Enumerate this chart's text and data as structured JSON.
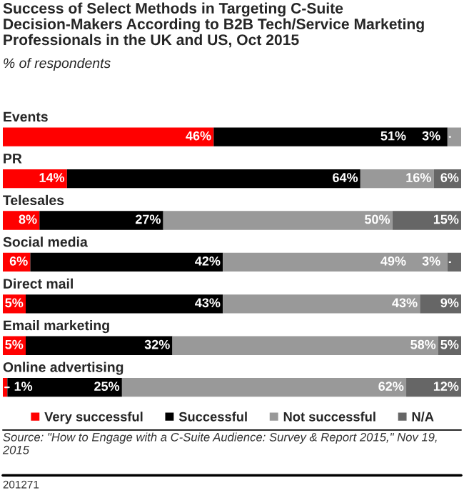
{
  "chart_data": {
    "type": "bar",
    "orientation": "horizontal",
    "stacked": true,
    "title": "Success of Select Methods in Targeting C-Suite Decision-Makers According to B2B Tech/Service Marketing Professionals in the UK and US, Oct 2015",
    "subtitle": "% of respondents",
    "categories": [
      "Events",
      "PR",
      "Telesales",
      "Social media",
      "Direct mail",
      "Email marketing",
      "Online advertising"
    ],
    "series": [
      {
        "name": "Very successful",
        "color": "#ff0000",
        "values": [
          46,
          14,
          8,
          6,
          5,
          5,
          1
        ],
        "value_labels": [
          "46%",
          "14%",
          "8%",
          "6%",
          "5%",
          "5%",
          "1%"
        ]
      },
      {
        "name": "Successful",
        "color": "#000000",
        "values": [
          51,
          64,
          27,
          42,
          43,
          32,
          25
        ],
        "value_labels": [
          "51%",
          "64%",
          "27%",
          "42%",
          "43%",
          "32%",
          "25%"
        ]
      },
      {
        "name": "Not successful",
        "color": "#999999",
        "values": [
          3,
          16,
          50,
          49,
          43,
          58,
          62
        ],
        "value_labels": [
          "3%",
          "16%",
          "50%",
          "49%",
          "43%",
          "58%",
          "62%"
        ]
      },
      {
        "name": "N/A",
        "color": "#666666",
        "values": [
          null,
          6,
          15,
          3,
          9,
          5,
          12
        ],
        "value_labels": [
          null,
          "6%",
          "15%",
          "3%",
          "9%",
          "5%",
          "12%"
        ]
      }
    ],
    "xlim": [
      0,
      100
    ],
    "legend": "bottom",
    "annotations": [
      "Source: \"How to Engage with a C-Suite Audience: Survey & Report 2015,\" Nov 19, 2015",
      "201271"
    ]
  }
}
